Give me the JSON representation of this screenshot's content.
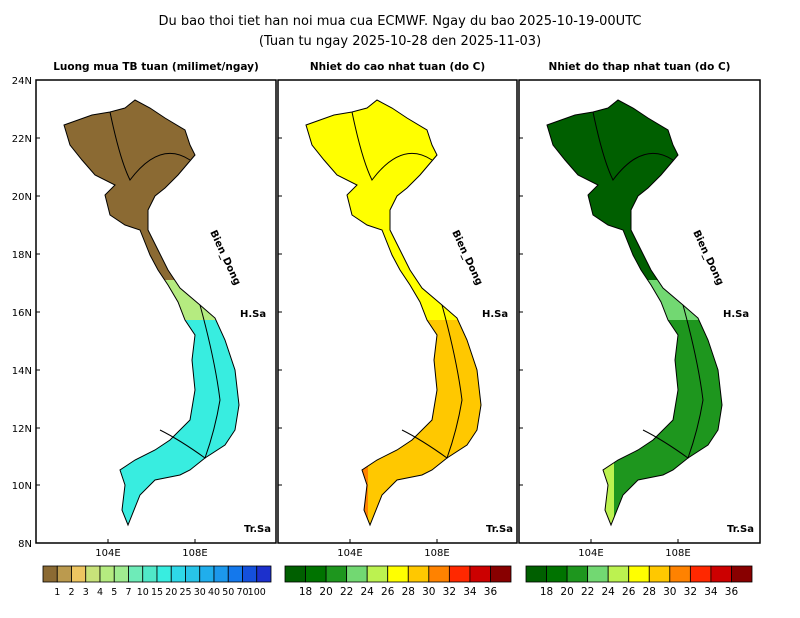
{
  "title_line1": "Du bao thoi tiet han noi mua cua ECMWF. Ngay du bao 2025-10-19-00UTC",
  "title_line2": "(Tuan tu ngay 2025-10-28 den 2025-11-03)",
  "lat_labels": [
    "24N",
    "22N",
    "20N",
    "18N",
    "16N",
    "14N",
    "12N",
    "10N",
    "8N"
  ],
  "lon_labels": [
    "104E",
    "108E"
  ],
  "map_labels": {
    "sea": "Bien_Dong",
    "paracel": "H.Sa",
    "spratly": "Tr.Sa"
  },
  "panels": [
    {
      "title": "Luong mua TB tuan (milimet/ngay)",
      "colors_north": "#8B6A33",
      "colors_south": "#38EDE0",
      "colorbar": {
        "colors": [
          "#8B6A33",
          "#BB9A4E",
          "#EDC561",
          "#C8E27A",
          "#B5EB80",
          "#A0EC90",
          "#6EEBB8",
          "#50E8C8",
          "#38EDE0",
          "#2ED8E8",
          "#28C4E8",
          "#20AEEC",
          "#1C98EC",
          "#1478EC",
          "#1450DC",
          "#1C30CC"
        ],
        "labels": [
          "1",
          "2",
          "3",
          "4",
          "5",
          "7",
          "10",
          "15",
          "20",
          "25",
          "30",
          "40",
          "50",
          "70",
          "100"
        ]
      }
    },
    {
      "title": "Nhiet do cao nhat tuan (do C)",
      "colors_north": "#FFFF00",
      "colors_south": "#FFC800",
      "colorbar": {
        "colors": [
          "#005F00",
          "#007300",
          "#1E961E",
          "#72D872",
          "#BCF250",
          "#FFFF00",
          "#FFC800",
          "#FF8200",
          "#FF2800",
          "#CC0000",
          "#880000"
        ],
        "labels": [
          "18",
          "20",
          "22",
          "24",
          "26",
          "28",
          "30",
          "32",
          "34",
          "36"
        ]
      }
    },
    {
      "title": "Nhiet do thap nhat tuan (do C)",
      "colors_north": "#005F00",
      "colors_south": "#1E961E",
      "colorbar": {
        "colors": [
          "#005F00",
          "#007300",
          "#1E961E",
          "#72D872",
          "#BCF250",
          "#FFFF00",
          "#FFC800",
          "#FF8200",
          "#FF2800",
          "#CC0000",
          "#880000"
        ],
        "labels": [
          "18",
          "20",
          "22",
          "24",
          "26",
          "28",
          "30",
          "32",
          "34",
          "36"
        ]
      }
    }
  ]
}
